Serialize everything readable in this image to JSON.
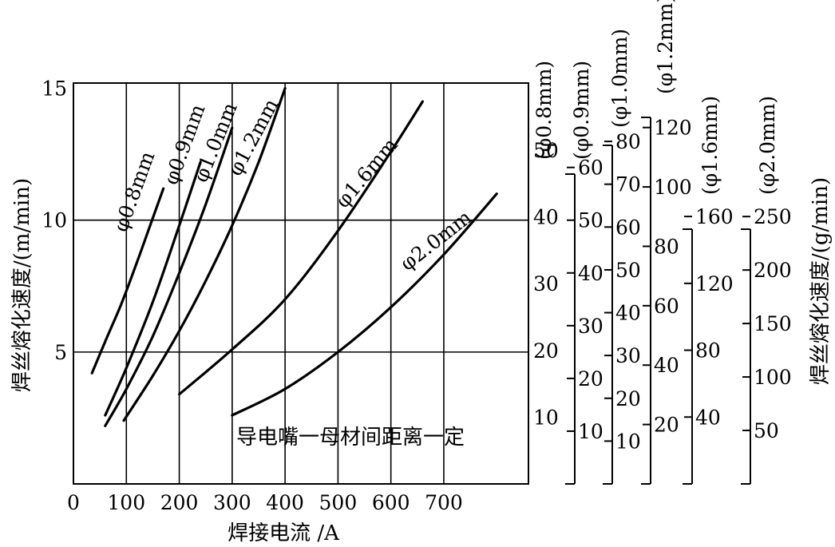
{
  "chart_data": {
    "type": "line",
    "xlabel": "焊接电流 /A",
    "ylabel": "焊丝熔化速度/(m/min)",
    "right_ylabel": "焊丝熔化速度/(g/min)",
    "annotation": "导电嘴一母材间距离一定",
    "xlim": [
      0,
      860
    ],
    "ylim": [
      0,
      15.2
    ],
    "x_ticks": [
      0,
      100,
      200,
      300,
      400,
      500,
      600,
      700
    ],
    "y_ticks": [
      5,
      10,
      15
    ],
    "x_grid": [
      100,
      200,
      300,
      400,
      500,
      600,
      700
    ],
    "y_grid": [
      5,
      10
    ],
    "series": [
      {
        "name": "φ0.8mm",
        "x": [
          35,
          60,
          90,
          120,
          145,
          170
        ],
        "y": [
          4.2,
          5.4,
          6.8,
          8.4,
          9.8,
          11.2
        ]
      },
      {
        "name": "φ0.9mm",
        "x": [
          60,
          100,
          150,
          200,
          240
        ],
        "y": [
          2.6,
          4.4,
          6.9,
          9.8,
          12.2
        ]
      },
      {
        "name": "φ1.0mm",
        "x": [
          60,
          100,
          150,
          200,
          250,
          300
        ],
        "y": [
          2.2,
          3.6,
          5.6,
          8.0,
          10.6,
          13.5
        ]
      },
      {
        "name": "φ1.2mm",
        "x": [
          95,
          150,
          200,
          250,
          300,
          350,
          400
        ],
        "y": [
          2.4,
          4.1,
          5.8,
          7.7,
          9.8,
          12.2,
          15.0
        ]
      },
      {
        "name": "φ1.6mm",
        "x": [
          200,
          300,
          400,
          500,
          600,
          660
        ],
        "y": [
          3.4,
          5.1,
          7.0,
          9.6,
          12.6,
          14.5
        ]
      },
      {
        "name": "φ2.0mm",
        "x": [
          300,
          400,
          500,
          600,
          700,
          800
        ],
        "y": [
          2.6,
          3.6,
          5.0,
          6.7,
          8.7,
          11.0
        ]
      }
    ],
    "curve_labels": [
      "φ0.8mm",
      "φ0.9mm",
      "φ1.0mm",
      "φ1.2mm",
      "φ1.6mm",
      "φ2.0mm"
    ],
    "secondary_axes": [
      {
        "name": "(φ0.8mm)",
        "ticks": [
          10,
          20,
          30,
          40,
          50
        ],
        "values_per_m": 3.95
      },
      {
        "name": "(φ0.9mm)",
        "ticks": [
          10,
          20,
          30,
          40,
          50,
          60
        ],
        "values_per_m": 5.0
      },
      {
        "name": "(φ1.0mm)",
        "ticks": [
          10,
          20,
          30,
          40,
          50,
          60,
          70,
          80
        ],
        "values_per_m": 6.16
      },
      {
        "name": "(φ1.2mm)",
        "ticks": [
          20,
          40,
          60,
          80,
          100,
          120
        ],
        "values_per_m": 8.88
      },
      {
        "name": "(φ1.6mm)",
        "ticks": [
          40,
          80,
          120,
          160
        ],
        "values_per_m": 15.78
      },
      {
        "name": "(φ2.0mm)",
        "ticks": [
          50,
          100,
          150,
          200,
          250
        ],
        "values_per_m": 24.66
      }
    ]
  }
}
